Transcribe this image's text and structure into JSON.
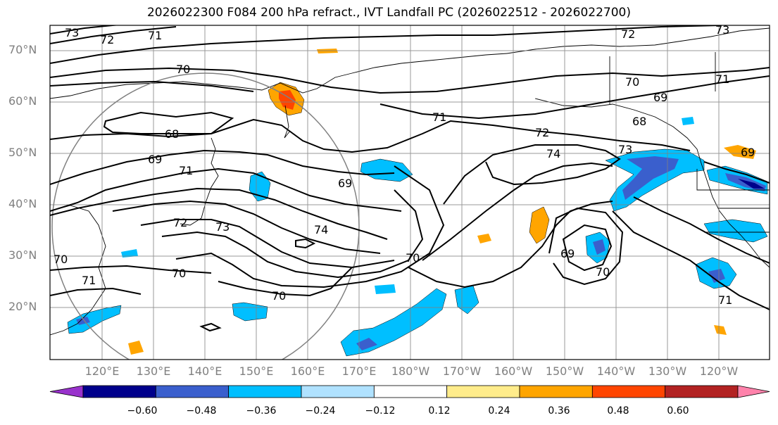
{
  "title": "2026022300 F084 200 hPa refract., IVT Landfall PC (2026022512 - 2026022700)",
  "lat_labels": [
    "70°N",
    "60°N",
    "50°N",
    "40°N",
    "30°N",
    "20°N"
  ],
  "lon_labels": [
    "120°E",
    "130°E",
    "140°E",
    "150°E",
    "160°E",
    "170°E",
    "180°W",
    "170°W",
    "160°W",
    "150°W",
    "140°W",
    "130°W",
    "120°W"
  ],
  "contour_labels": [
    "73",
    "72",
    "71",
    "70",
    "68",
    "69",
    "71",
    "69",
    "72",
    "73",
    "74",
    "70",
    "70",
    "71",
    "70",
    "74",
    "69",
    "70",
    "70",
    "71",
    "72",
    "73",
    "72",
    "70",
    "69",
    "71",
    "68",
    "73",
    "71",
    "69"
  ],
  "colorbar": {
    "ticks": [
      "−0.60",
      "−0.48",
      "−0.36",
      "−0.24",
      "−0.12",
      "0.12",
      "0.24",
      "0.36",
      "0.48",
      "0.60"
    ],
    "colors": [
      "#9932CC",
      "#00008B",
      "#3A5FCD",
      "#00BFFF",
      "#B0E2FF",
      "#FFFFFF",
      "#FFEC8B",
      "#FFA500",
      "#FF4500",
      "#B22222",
      "#FF82AB"
    ]
  }
}
